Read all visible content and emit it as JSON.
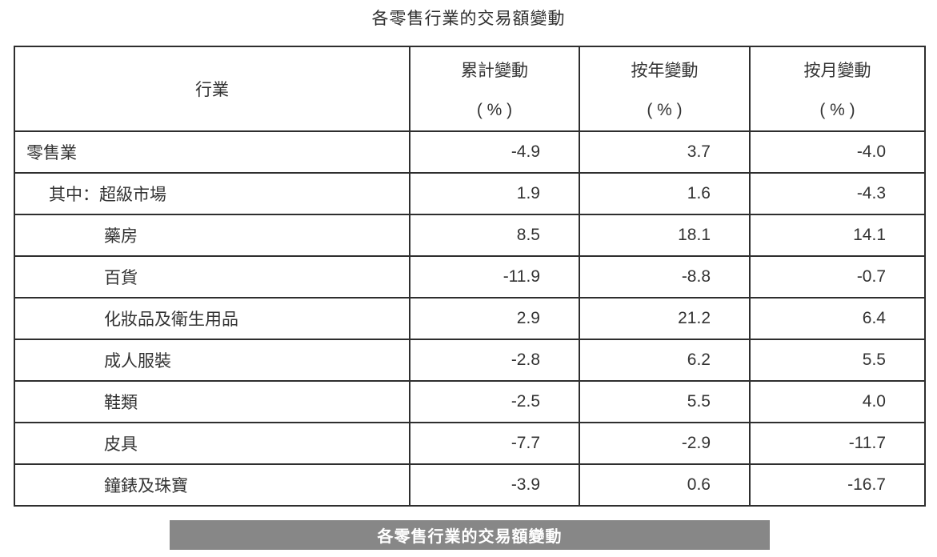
{
  "page": {
    "title": "各零售行業的交易額變動",
    "caption": "各零售行業的交易額變動"
  },
  "colors": {
    "caption_background": "#878787",
    "caption_text": "#ffffff",
    "table_border": "#2e2e2e",
    "text": "#333333"
  },
  "table": {
    "columns": [
      {
        "label": "行業",
        "unit": ""
      },
      {
        "label": "累計變動",
        "unit": "( % )"
      },
      {
        "label": "按年變動",
        "unit": "( % )"
      },
      {
        "label": "按月變動",
        "unit": "( % )"
      }
    ],
    "rows": [
      {
        "industry": "零售業",
        "indent": 0,
        "cumulative": "-4.9",
        "yoy": "3.7",
        "mom": "-4.0"
      },
      {
        "industry": "其中：超級市場",
        "indent": 1,
        "cumulative": "1.9",
        "yoy": "1.6",
        "mom": "-4.3"
      },
      {
        "industry": "藥房",
        "indent": 2,
        "cumulative": "8.5",
        "yoy": "18.1",
        "mom": "14.1"
      },
      {
        "industry": "百貨",
        "indent": 2,
        "cumulative": "-11.9",
        "yoy": "-8.8",
        "mom": "-0.7"
      },
      {
        "industry": "化妝品及衛生用品",
        "indent": 2,
        "cumulative": "2.9",
        "yoy": "21.2",
        "mom": "6.4"
      },
      {
        "industry": "成人服裝",
        "indent": 2,
        "cumulative": "-2.8",
        "yoy": "6.2",
        "mom": "5.5"
      },
      {
        "industry": "鞋類",
        "indent": 2,
        "cumulative": "-2.5",
        "yoy": "5.5",
        "mom": "4.0"
      },
      {
        "industry": "皮具",
        "indent": 2,
        "cumulative": "-7.7",
        "yoy": "-2.9",
        "mom": "-11.7"
      },
      {
        "industry": "鐘錶及珠寶",
        "indent": 2,
        "cumulative": "-3.9",
        "yoy": "0.6",
        "mom": "-16.7"
      }
    ]
  }
}
